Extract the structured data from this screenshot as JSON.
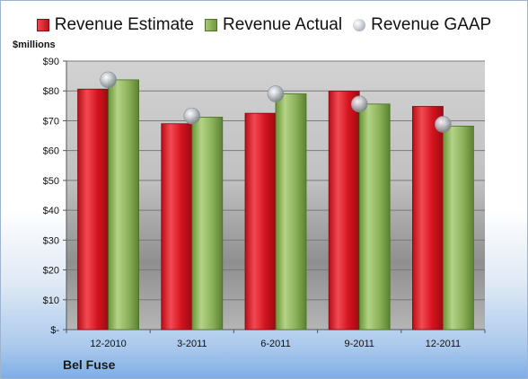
{
  "chart_data": {
    "type": "bar",
    "title": "",
    "ylabel": "$millions",
    "xlabel": "",
    "categories": [
      "12-2010",
      "3-2011",
      "6-2011",
      "9-2011",
      "12-2011"
    ],
    "series": [
      {
        "name": "Revenue Estimate",
        "kind": "bar",
        "color": "#d0141f",
        "values": [
          80.6,
          69.0,
          72.5,
          79.9,
          74.8
        ]
      },
      {
        "name": "Revenue Actual",
        "kind": "bar",
        "color": "#8db25a",
        "values": [
          83.7,
          71.2,
          79.0,
          75.6,
          68.2
        ]
      },
      {
        "name": "Revenue GAAP",
        "kind": "marker",
        "color": "#b8bcc2",
        "values": [
          83.7,
          71.6,
          79.0,
          75.6,
          68.8
        ]
      }
    ],
    "yticks": [
      "$-",
      "$10",
      "$20",
      "$30",
      "$40",
      "$50",
      "$60",
      "$70",
      "$80",
      "$90"
    ],
    "ylim": [
      0,
      90
    ],
    "grid": true,
    "legend_position": "top"
  },
  "footer": {
    "company": "Bel Fuse"
  }
}
